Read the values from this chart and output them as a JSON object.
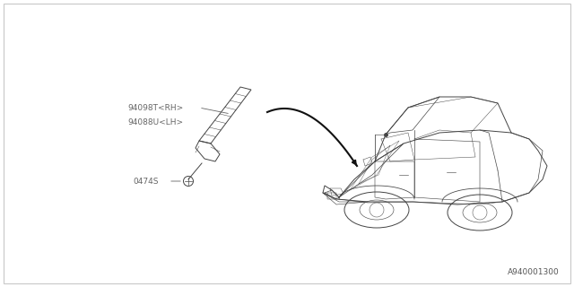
{
  "bg_color": "#ffffff",
  "border_color": "#c8c8c8",
  "diagram_id": "A940001300",
  "part_label_color": "#666666",
  "part_label_fontsize": 6.5,
  "car_color": "#444444",
  "component_color": "#444444",
  "diagram_id_fontsize": 6.5,
  "label1": "94098T<RH>",
  "label2": "94088U<LH>",
  "label3": "0474S"
}
